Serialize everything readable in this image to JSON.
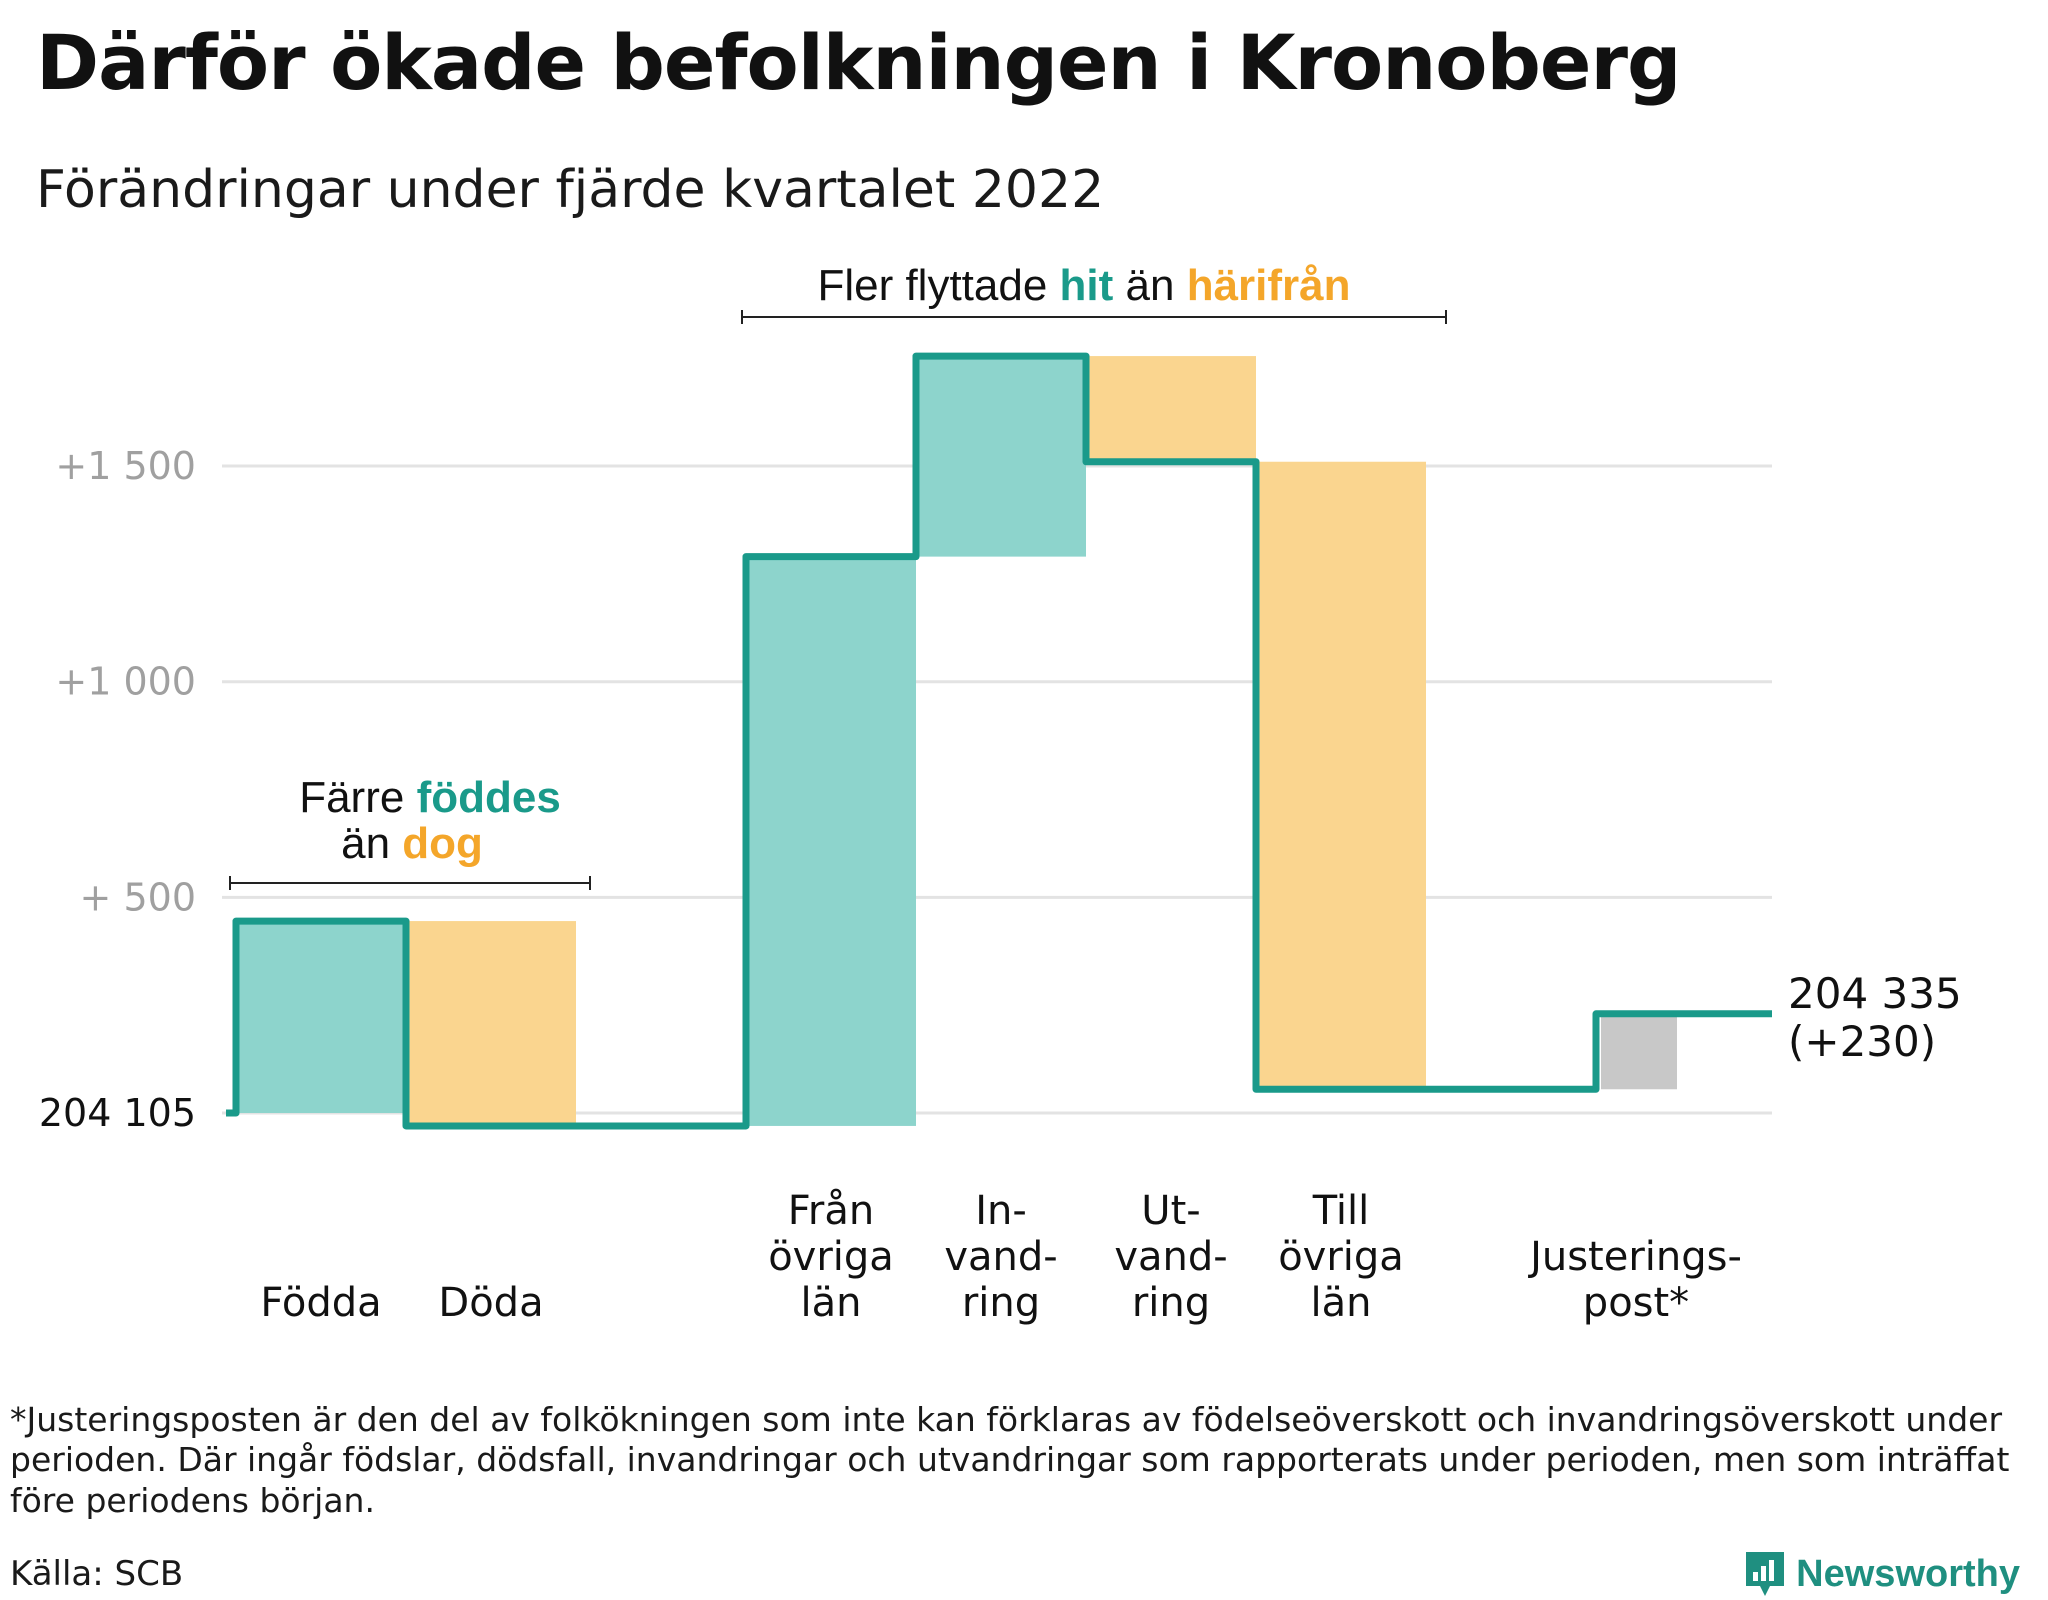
{
  "title": "Därför ökade befolkningen i Kronoberg",
  "subtitle": "Förändringar under fjärde kvartalet 2022",
  "colors": {
    "inflow": "#8dd4cc",
    "outflow": "#fad58f",
    "adjustment": "#c8c8c8",
    "step_line": "#1a9a8a",
    "grid": "#e3e3e3",
    "accent_in": "#1a9a8a",
    "accent_out": "#f4a62a"
  },
  "chart_data": {
    "type": "waterfall",
    "base_value": 204105,
    "base_label": "204 105",
    "y_ticks": [
      {
        "value": 500,
        "label": "+ 500"
      },
      {
        "value": 1000,
        "label": "+1 000"
      },
      {
        "value": 1500,
        "label": "+1 500"
      }
    ],
    "ylim": [
      -50,
      1810
    ],
    "steps": [
      {
        "category": [
          "Födda"
        ],
        "kind": "in",
        "start": 0,
        "end": 445
      },
      {
        "category": [
          "Döda"
        ],
        "kind": "out",
        "start": 445,
        "end": -30
      },
      {
        "category": [],
        "kind": "gap",
        "start": -30,
        "end": -30
      },
      {
        "category": [
          "Från",
          "övriga",
          "län"
        ],
        "kind": "in",
        "start": -30,
        "end": 1290
      },
      {
        "category": [
          "In-",
          "vand-",
          "ring"
        ],
        "kind": "in",
        "start": 1290,
        "end": 1755
      },
      {
        "category": [
          "Ut-",
          "vand-",
          "ring"
        ],
        "kind": "out",
        "start": 1755,
        "end": 1510
      },
      {
        "category": [
          "Till",
          "övriga",
          "län"
        ],
        "kind": "out",
        "start": 1510,
        "end": 55
      },
      {
        "category": [],
        "kind": "gap",
        "start": 55,
        "end": 55
      },
      {
        "category": [
          "Justerings-",
          "post*"
        ],
        "kind": "adjustment",
        "start": 55,
        "end": 230
      }
    ],
    "end_value_label": "204 335",
    "end_change_label": "(+230)",
    "annotations": [
      {
        "id": "births",
        "parts": [
          "Färre ",
          "föddes"
        ],
        "parts2": [
          "än ",
          "dog"
        ]
      },
      {
        "id": "migration",
        "parts": [
          "Fler flyttade ",
          "hit",
          " än ",
          "härifrån"
        ]
      }
    ]
  },
  "footnote": "*Justeringsposten är den del av folkökningen som inte kan förklaras av födelseöverskott och invandringsöverskott under perioden. Där ingår födslar, dödsfall, invandringar och utvandringar som rapporterats under perioden, men som inträffat före periodens början.",
  "source": "Källa: SCB",
  "brand": "Newsworthy"
}
